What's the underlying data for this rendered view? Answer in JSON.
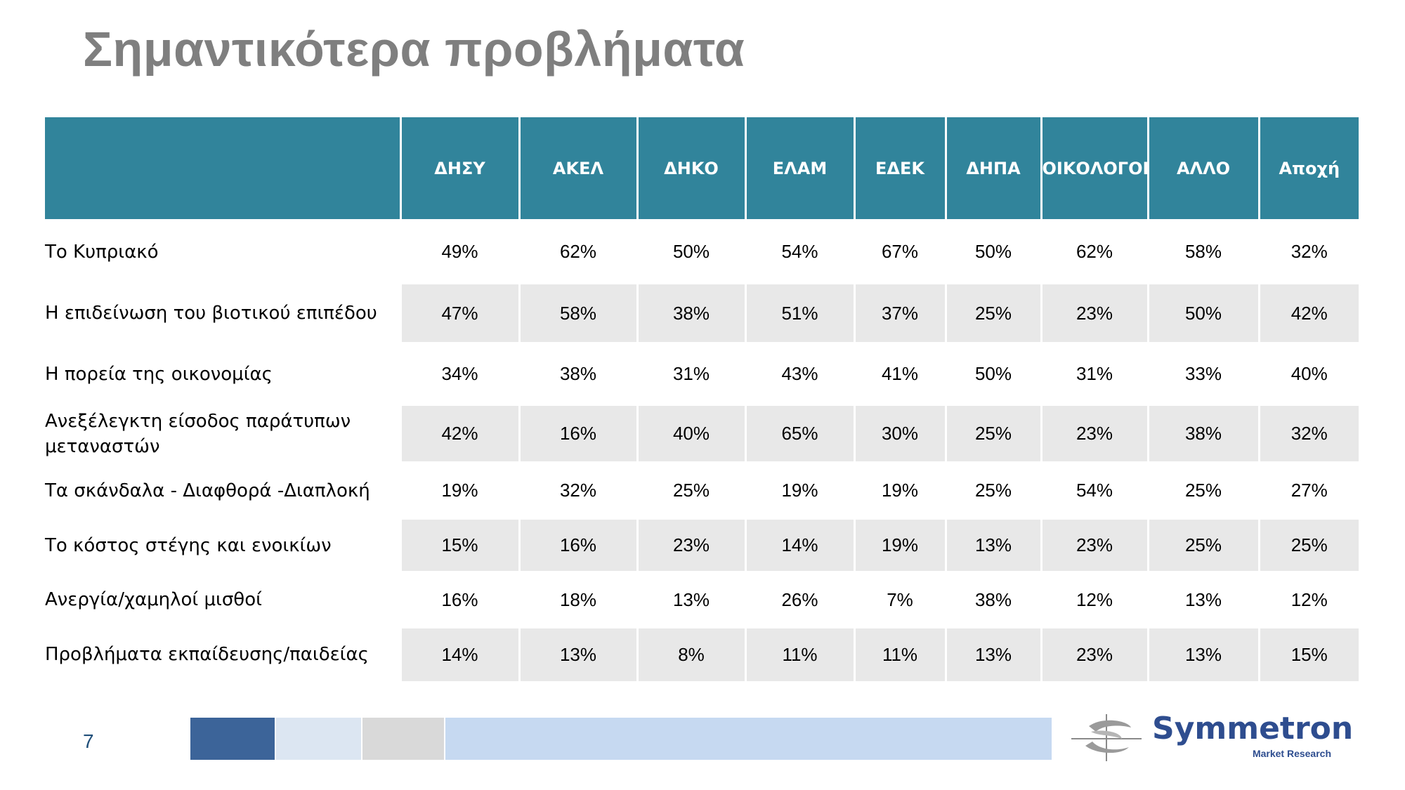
{
  "title": "Σημαντικότερα προβλήματα",
  "page_number": "7",
  "table": {
    "columns": [
      "ΔΗΣΥ",
      "ΑΚΕΛ",
      "ΔΗΚΟ",
      "ΕΛΑΜ",
      "ΕΔΕΚ",
      "ΔΗΠΑ",
      "ΟΙΚΟΛΟΓΟΙ",
      "ΑΛΛΟ",
      "Αποχή"
    ],
    "rows": [
      {
        "label": "Το Κυπριακό",
        "values": [
          "49%",
          "62%",
          "50%",
          "54%",
          "67%",
          "50%",
          "62%",
          "58%",
          "32%"
        ]
      },
      {
        "label": "Η επιδείνωση του βιοτικού επιπέδου",
        "values": [
          "47%",
          "58%",
          "38%",
          "51%",
          "37%",
          "25%",
          "23%",
          "50%",
          "42%"
        ]
      },
      {
        "label": "Η πορεία της οικονομίας",
        "values": [
          "34%",
          "38%",
          "31%",
          "43%",
          "41%",
          "50%",
          "31%",
          "33%",
          "40%"
        ]
      },
      {
        "label": "Ανεξέλεγκτη είσοδος παράτυπων μεταναστών",
        "values": [
          "42%",
          "16%",
          "40%",
          "65%",
          "30%",
          "25%",
          "23%",
          "38%",
          "32%"
        ]
      },
      {
        "label": "Τα σκάνδαλα - Διαφθορά -Διαπλοκή",
        "values": [
          "19%",
          "32%",
          "25%",
          "19%",
          "19%",
          "25%",
          "54%",
          "25%",
          "27%"
        ]
      },
      {
        "label": "Το κόστος στέγης και ενοικίων",
        "values": [
          "15%",
          "16%",
          "23%",
          "14%",
          "19%",
          "13%",
          "23%",
          "25%",
          "25%"
        ]
      },
      {
        "label": "Ανεργία/χαμηλοί μισθοί",
        "values": [
          "16%",
          "18%",
          "13%",
          "26%",
          "7%",
          "38%",
          "12%",
          "13%",
          "12%"
        ]
      },
      {
        "label": "Προβλήματα εκπαίδευσης/παιδείας",
        "values": [
          "14%",
          "13%",
          "8%",
          "11%",
          "11%",
          "13%",
          "23%",
          "13%",
          "15%"
        ]
      }
    ]
  },
  "footer": {
    "logo_name": "Symmetron",
    "logo_tagline": "Market Research",
    "bar_colors": [
      "#3c6499",
      "#dce6f2",
      "#d9d9d9",
      "#c6d9f1"
    ]
  },
  "colors": {
    "header_bg": "#31849b",
    "title": "#7f7f7f",
    "row_stripe": "#e8e8e8"
  }
}
